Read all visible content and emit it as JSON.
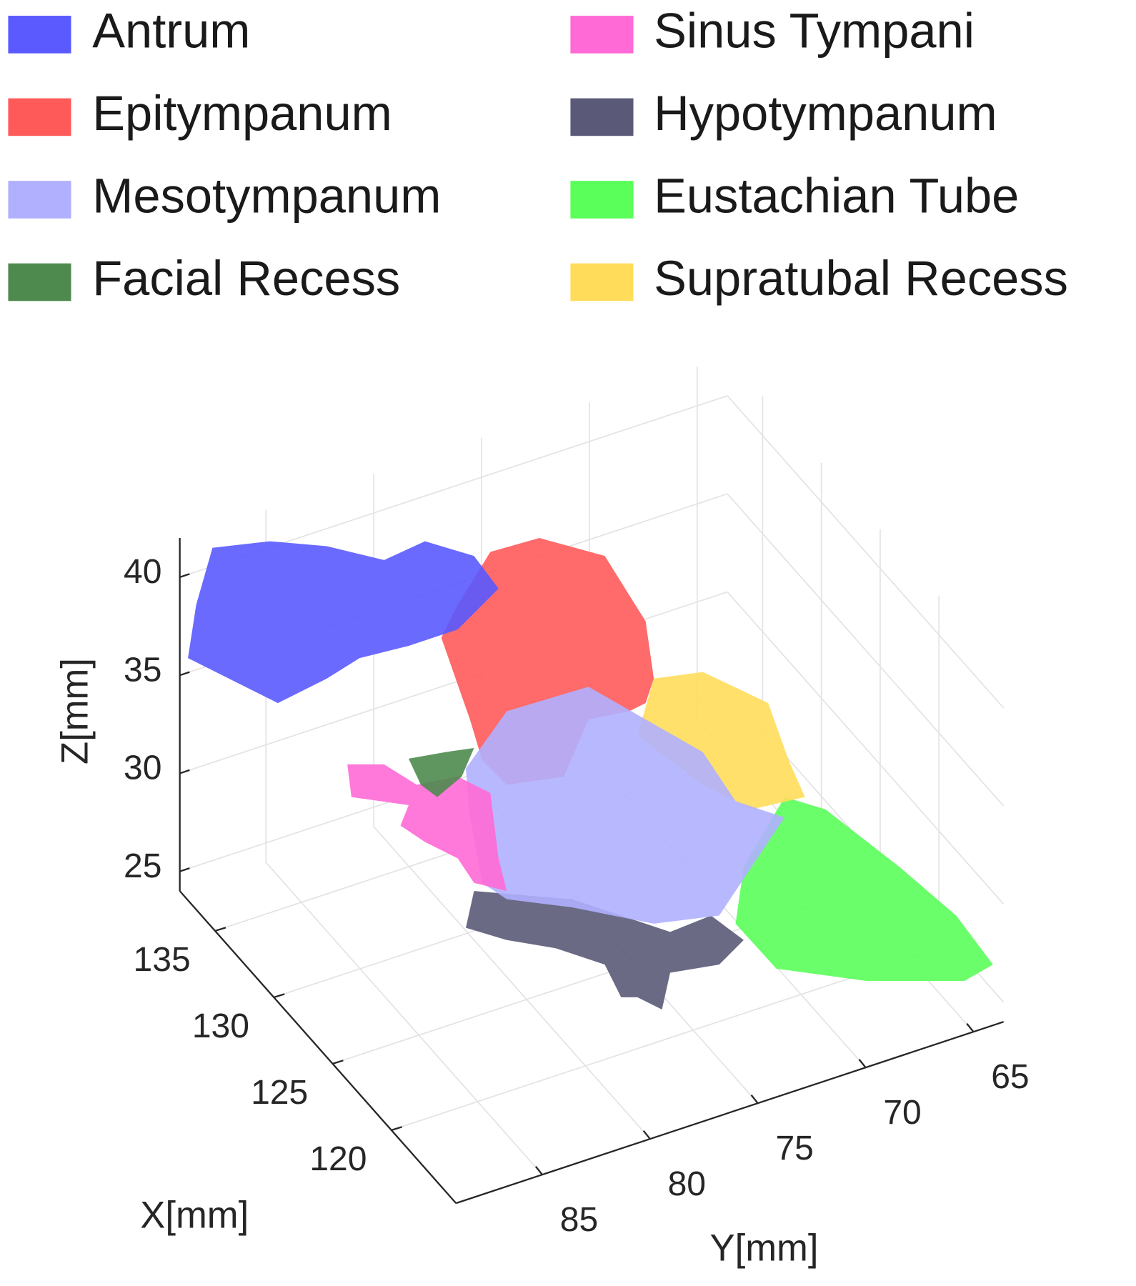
{
  "chart_data": {
    "type": "surface3d",
    "series": [
      {
        "name": "Antrum",
        "color": "#5a5aff"
      },
      {
        "name": "Epitympanum",
        "color": "#ff5a5a"
      },
      {
        "name": "Mesotympanum",
        "color": "#b0b0ff"
      },
      {
        "name": "Facial Recess",
        "color": "#4e8a4e"
      },
      {
        "name": "Sinus Tympani",
        "color": "#ff6ad6"
      },
      {
        "name": "Hypotympanum",
        "color": "#5a5a78"
      },
      {
        "name": "Eustachian Tube",
        "color": "#5aff5a"
      },
      {
        "name": "Supratubal Recess",
        "color": "#ffdd5a"
      }
    ],
    "xlabel": "X[mm]",
    "ylabel": "Y[mm]",
    "zlabel": "Z[mm]",
    "xlim": [
      138,
      114.5
    ],
    "ylim": [
      89,
      63.6
    ],
    "zlim": [
      24,
      42
    ],
    "xticks": [
      135,
      130,
      125,
      120
    ],
    "yticks": [
      85,
      80,
      75,
      70,
      65
    ],
    "zticks": [
      25,
      30,
      35,
      40
    ],
    "grid": true
  }
}
